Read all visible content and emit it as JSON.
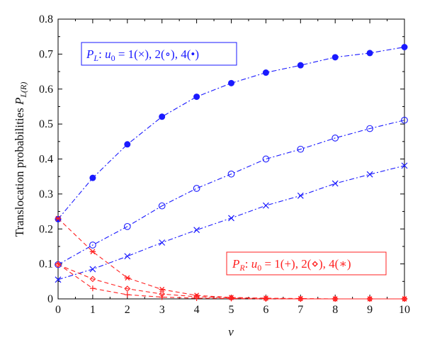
{
  "chart_data": {
    "type": "line",
    "xlabel": "v",
    "ylabel": "Translocation probabilities P_L(R)",
    "xlim": [
      0,
      10
    ],
    "ylim": [
      0,
      0.8
    ],
    "x_ticks": [
      0,
      1,
      2,
      3,
      4,
      5,
      6,
      7,
      8,
      9,
      10
    ],
    "y_ticks": [
      0,
      0.1,
      0.2,
      0.3,
      0.4,
      0.5,
      0.6,
      0.7,
      0.8
    ],
    "x_tick_labels": [
      "0",
      "1",
      "2",
      "3",
      "4",
      "5",
      "6",
      "7",
      "8",
      "9",
      "10"
    ],
    "y_tick_labels": [
      "0",
      "0.1",
      "0.2",
      "0.3",
      "0.4",
      "0.5",
      "0.6",
      "0.7",
      "0.8"
    ],
    "grid": false,
    "x": [
      0,
      1,
      2,
      3,
      4,
      5,
      6,
      7,
      8,
      9,
      10
    ],
    "series": [
      {
        "group": "P_L",
        "marker": "x",
        "color": "#1a1aff",
        "dash": "dashdot",
        "values": [
          0.055,
          0.085,
          0.122,
          0.161,
          0.197,
          0.231,
          0.267,
          0.295,
          0.33,
          0.356,
          0.381
        ]
      },
      {
        "group": "P_L",
        "marker": "circle-open",
        "color": "#1a1aff",
        "dash": "dashdot",
        "values": [
          0.098,
          0.154,
          0.207,
          0.266,
          0.316,
          0.357,
          0.4,
          0.428,
          0.46,
          0.487,
          0.511
        ]
      },
      {
        "group": "P_L",
        "marker": "circle-filled",
        "color": "#1a1aff",
        "dash": "dashdot",
        "values": [
          0.228,
          0.346,
          0.442,
          0.521,
          0.578,
          0.617,
          0.647,
          0.668,
          0.691,
          0.703,
          0.72
        ]
      },
      {
        "group": "P_R",
        "marker": "plus",
        "color": "#ff2020",
        "dash": "dashed",
        "values": [
          0.1,
          0.03,
          0.012,
          0.005,
          0.002,
          0.001,
          0.0,
          0.0,
          0.0,
          0.0,
          0.0
        ]
      },
      {
        "group": "P_R",
        "marker": "diamond",
        "color": "#ff2020",
        "dash": "dashed",
        "values": [
          0.098,
          0.057,
          0.029,
          0.014,
          0.006,
          0.003,
          0.001,
          0.0,
          0.0,
          0.0,
          0.0
        ]
      },
      {
        "group": "P_R",
        "marker": "asterisk",
        "color": "#ff2020",
        "dash": "dashed",
        "values": [
          0.23,
          0.135,
          0.06,
          0.027,
          0.01,
          0.004,
          0.002,
          0.001,
          0.0,
          0.0,
          0.0
        ]
      }
    ],
    "legend": {
      "PL": {
        "text": "P_L: u_0 = 1(×), 2(∘), 4(•)",
        "placement": "top-left",
        "color": "#1a1aff"
      },
      "PR": {
        "text": "P_R: u_0 = 1(+), 2(⋄), 4(∗)",
        "placement": "bottom-right",
        "color": "#ff2020"
      }
    }
  }
}
